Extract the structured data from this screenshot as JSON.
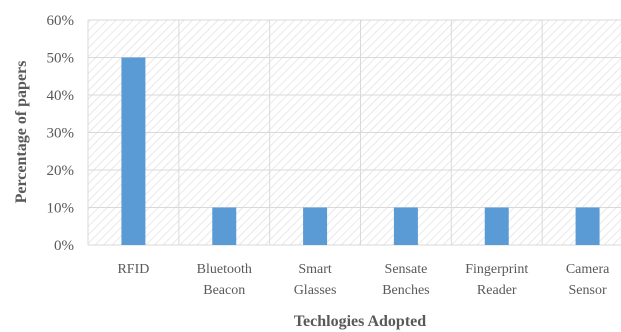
{
  "chart_data": {
    "type": "bar",
    "title": "",
    "xlabel": "Techlogies Adopted",
    "ylabel": "Percentage of papers",
    "categories": [
      [
        "RFID"
      ],
      [
        "Bluetooth",
        "Beacon"
      ],
      [
        "Smart",
        "Glasses"
      ],
      [
        "Sensate",
        "Benches"
      ],
      [
        "Fingerprint",
        "Reader"
      ],
      [
        "Camera",
        "Sensor"
      ]
    ],
    "values": [
      50,
      10,
      10,
      10,
      10,
      10
    ],
    "ylim": [
      0,
      60
    ],
    "yticks": [
      0,
      10,
      20,
      30,
      40,
      50,
      60
    ],
    "ytick_labels": [
      "0%",
      "10%",
      "20%",
      "30%",
      "40%",
      "50%",
      "60%"
    ],
    "grid": true,
    "plot_background": "hatched",
    "bar_color": "#5b9bd5",
    "grid_color": "#d9d9d9"
  }
}
